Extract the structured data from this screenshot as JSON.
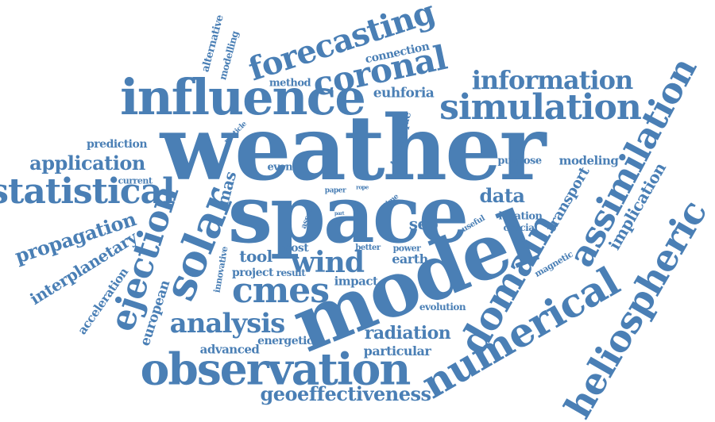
{
  "word_cloud": {
    "color": "#4a7fb5",
    "words": [
      {
        "key": "weather",
        "text": "weather"
      },
      {
        "key": "space",
        "text": "space"
      },
      {
        "key": "model",
        "text": "model"
      },
      {
        "key": "influence",
        "text": "influence"
      },
      {
        "key": "observation",
        "text": "observation"
      },
      {
        "key": "simulation",
        "text": "simulation"
      },
      {
        "key": "statistical",
        "text": "statistical"
      },
      {
        "key": "domain",
        "text": "domain"
      },
      {
        "key": "assimilation",
        "text": "assimilation"
      },
      {
        "key": "numerical",
        "text": "numerical"
      },
      {
        "key": "heliospheric",
        "text": "heliospheric"
      },
      {
        "key": "forecasting",
        "text": "forecasting"
      },
      {
        "key": "coronal",
        "text": "coronal"
      },
      {
        "key": "information",
        "text": "information"
      },
      {
        "key": "solar",
        "text": "solar"
      },
      {
        "key": "ejection",
        "text": "ejection"
      },
      {
        "key": "cmes",
        "text": "cmes"
      },
      {
        "key": "wind",
        "text": "wind"
      },
      {
        "key": "analysis",
        "text": "analysis"
      },
      {
        "key": "application",
        "text": "application"
      },
      {
        "key": "propagation",
        "text": "propagation"
      },
      {
        "key": "geoeffectiveness",
        "text": "geoeffectiveness"
      },
      {
        "key": "data",
        "text": "data"
      },
      {
        "key": "radiation",
        "text": "radiation"
      },
      {
        "key": "interplanetary",
        "text": "interplanetary"
      },
      {
        "key": "implication",
        "text": "implication"
      },
      {
        "key": "transport",
        "text": "transport"
      },
      {
        "key": "euhforia",
        "text": "euhforia"
      },
      {
        "key": "tool",
        "text": "tool"
      },
      {
        "key": "mas",
        "text": "mas"
      },
      {
        "key": "prediction",
        "text": "prediction"
      },
      {
        "key": "european",
        "text": "european"
      },
      {
        "key": "acceleration",
        "text": "acceleration"
      },
      {
        "key": "technique",
        "text": "technique"
      },
      {
        "key": "sep",
        "text": "sep"
      },
      {
        "key": "earth",
        "text": "earth"
      },
      {
        "key": "impact",
        "text": "impact"
      },
      {
        "key": "particular",
        "text": "particular"
      },
      {
        "key": "advanced",
        "text": "advanced"
      },
      {
        "key": "energetic",
        "text": "energetic"
      },
      {
        "key": "modeling",
        "text": "modeling"
      },
      {
        "key": "location",
        "text": "location"
      },
      {
        "key": "crucial",
        "text": "crucial"
      },
      {
        "key": "magnetic",
        "text": "magnetic"
      },
      {
        "key": "project",
        "text": "project"
      },
      {
        "key": "result",
        "text": "result"
      },
      {
        "key": "most",
        "text": "most"
      },
      {
        "key": "better",
        "text": "better"
      },
      {
        "key": "power",
        "text": "power"
      },
      {
        "key": "evolution",
        "text": "evolution"
      },
      {
        "key": "innovative",
        "text": "innovative"
      },
      {
        "key": "connection",
        "text": "connection"
      },
      {
        "key": "method",
        "text": "method"
      },
      {
        "key": "alternative",
        "text": "alternative"
      },
      {
        "key": "modelling",
        "text": "modelling"
      },
      {
        "key": "event",
        "text": "event"
      },
      {
        "key": "purpose",
        "text": "purpose"
      },
      {
        "key": "current",
        "text": "current"
      },
      {
        "key": "particle",
        "text": "particle"
      },
      {
        "key": "useful",
        "text": "useful"
      },
      {
        "key": "paper",
        "text": "paper"
      },
      {
        "key": "rope",
        "text": "rope"
      },
      {
        "key": "time",
        "text": "time"
      },
      {
        "key": "asset",
        "text": "asset"
      },
      {
        "key": "part",
        "text": "part"
      },
      {
        "key": "this",
        "text": "this"
      }
    ]
  }
}
